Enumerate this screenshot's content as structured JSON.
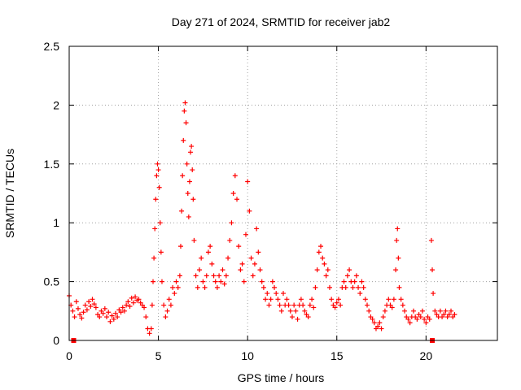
{
  "chart_data": {
    "type": "scatter",
    "title": "Day 271 of 2024, SRMTID for receiver jab2",
    "xlabel": "GPS time / hours",
    "ylabel": "SRMTID / TECUs",
    "xlim": [
      0,
      24
    ],
    "ylim": [
      0,
      2.5
    ],
    "xticks": [
      0,
      5,
      10,
      15,
      20
    ],
    "yticks": [
      0,
      0.5,
      1,
      1.5,
      2,
      2.5
    ],
    "ytick_labels": [
      "0",
      "0.5",
      "1",
      "1.5",
      "2",
      "2.5"
    ],
    "grid": true,
    "series": [
      {
        "name": "SRMTID",
        "color": "#ff0000",
        "marker": "plus",
        "points": [
          [
            0.0,
            0.38
          ],
          [
            0.1,
            0.3
          ],
          [
            0.2,
            0.25
          ],
          [
            0.3,
            0.2
          ],
          [
            0.4,
            0.33
          ],
          [
            0.5,
            0.27
          ],
          [
            0.6,
            0.22
          ],
          [
            0.7,
            0.19
          ],
          [
            0.8,
            0.24
          ],
          [
            0.9,
            0.3
          ],
          [
            1.0,
            0.26
          ],
          [
            1.1,
            0.33
          ],
          [
            1.2,
            0.29
          ],
          [
            1.3,
            0.35
          ],
          [
            1.4,
            0.31
          ],
          [
            1.5,
            0.28
          ],
          [
            1.6,
            0.22
          ],
          [
            1.7,
            0.2
          ],
          [
            1.8,
            0.25
          ],
          [
            1.9,
            0.23
          ],
          [
            2.0,
            0.27
          ],
          [
            2.1,
            0.2
          ],
          [
            2.2,
            0.24
          ],
          [
            2.3,
            0.16
          ],
          [
            2.4,
            0.21
          ],
          [
            2.5,
            0.18
          ],
          [
            2.6,
            0.23
          ],
          [
            2.7,
            0.2
          ],
          [
            2.8,
            0.26
          ],
          [
            2.9,
            0.24
          ],
          [
            3.0,
            0.28
          ],
          [
            3.1,
            0.25
          ],
          [
            3.2,
            0.3
          ],
          [
            3.3,
            0.33
          ],
          [
            3.4,
            0.29
          ],
          [
            3.5,
            0.36
          ],
          [
            3.6,
            0.32
          ],
          [
            3.7,
            0.37
          ],
          [
            3.8,
            0.34
          ],
          [
            3.9,
            0.35
          ],
          [
            4.0,
            0.32
          ],
          [
            4.1,
            0.3
          ],
          [
            4.2,
            0.28
          ],
          [
            4.3,
            0.2
          ],
          [
            4.4,
            0.1
          ],
          [
            4.5,
            0.06
          ],
          [
            4.6,
            0.1
          ],
          [
            4.65,
            0.3
          ],
          [
            4.7,
            0.5
          ],
          [
            4.75,
            0.7
          ],
          [
            4.8,
            0.95
          ],
          [
            4.85,
            1.2
          ],
          [
            4.9,
            1.4
          ],
          [
            4.95,
            1.5
          ],
          [
            5.0,
            1.45
          ],
          [
            5.05,
            1.3
          ],
          [
            5.1,
            1.0
          ],
          [
            5.15,
            0.75
          ],
          [
            5.2,
            0.5
          ],
          [
            5.3,
            0.3
          ],
          [
            5.4,
            0.2
          ],
          [
            5.5,
            0.25
          ],
          [
            5.6,
            0.35
          ],
          [
            5.7,
            0.3
          ],
          [
            5.8,
            0.45
          ],
          [
            5.9,
            0.4
          ],
          [
            6.0,
            0.5
          ],
          [
            6.1,
            0.45
          ],
          [
            6.2,
            0.55
          ],
          [
            6.25,
            0.8
          ],
          [
            6.3,
            1.1
          ],
          [
            6.35,
            1.4
          ],
          [
            6.4,
            1.7
          ],
          [
            6.45,
            1.95
          ],
          [
            6.5,
            2.02
          ],
          [
            6.55,
            1.85
          ],
          [
            6.6,
            1.5
          ],
          [
            6.65,
            1.25
          ],
          [
            6.7,
            1.05
          ],
          [
            6.75,
            1.35
          ],
          [
            6.8,
            1.6
          ],
          [
            6.85,
            1.65
          ],
          [
            6.9,
            1.45
          ],
          [
            6.95,
            1.2
          ],
          [
            7.0,
            0.85
          ],
          [
            7.1,
            0.55
          ],
          [
            7.2,
            0.45
          ],
          [
            7.3,
            0.6
          ],
          [
            7.4,
            0.7
          ],
          [
            7.5,
            0.5
          ],
          [
            7.6,
            0.45
          ],
          [
            7.7,
            0.55
          ],
          [
            7.8,
            0.75
          ],
          [
            7.9,
            0.8
          ],
          [
            8.0,
            0.65
          ],
          [
            8.1,
            0.55
          ],
          [
            8.2,
            0.5
          ],
          [
            8.3,
            0.45
          ],
          [
            8.4,
            0.55
          ],
          [
            8.5,
            0.5
          ],
          [
            8.6,
            0.6
          ],
          [
            8.7,
            0.48
          ],
          [
            8.8,
            0.55
          ],
          [
            8.9,
            0.7
          ],
          [
            9.0,
            0.85
          ],
          [
            9.1,
            1.0
          ],
          [
            9.2,
            1.25
          ],
          [
            9.3,
            1.4
          ],
          [
            9.4,
            1.2
          ],
          [
            9.5,
            0.8
          ],
          [
            9.6,
            0.6
          ],
          [
            9.7,
            0.65
          ],
          [
            9.8,
            0.5
          ],
          [
            9.9,
            0.9
          ],
          [
            10.0,
            1.35
          ],
          [
            10.1,
            1.1
          ],
          [
            10.2,
            0.7
          ],
          [
            10.3,
            0.55
          ],
          [
            10.4,
            0.65
          ],
          [
            10.5,
            0.95
          ],
          [
            10.6,
            0.75
          ],
          [
            10.7,
            0.6
          ],
          [
            10.8,
            0.5
          ],
          [
            10.9,
            0.45
          ],
          [
            11.0,
            0.35
          ],
          [
            11.1,
            0.4
          ],
          [
            11.2,
            0.3
          ],
          [
            11.3,
            0.35
          ],
          [
            11.4,
            0.5
          ],
          [
            11.5,
            0.45
          ],
          [
            11.6,
            0.4
          ],
          [
            11.7,
            0.35
          ],
          [
            11.8,
            0.3
          ],
          [
            11.9,
            0.25
          ],
          [
            12.0,
            0.4
          ],
          [
            12.1,
            0.3
          ],
          [
            12.2,
            0.35
          ],
          [
            12.3,
            0.3
          ],
          [
            12.4,
            0.25
          ],
          [
            12.5,
            0.2
          ],
          [
            12.6,
            0.3
          ],
          [
            12.7,
            0.25
          ],
          [
            12.8,
            0.18
          ],
          [
            12.9,
            0.3
          ],
          [
            13.0,
            0.35
          ],
          [
            13.1,
            0.3
          ],
          [
            13.2,
            0.25
          ],
          [
            13.3,
            0.22
          ],
          [
            13.4,
            0.2
          ],
          [
            13.5,
            0.3
          ],
          [
            13.6,
            0.35
          ],
          [
            13.7,
            0.28
          ],
          [
            13.8,
            0.45
          ],
          [
            13.9,
            0.6
          ],
          [
            14.0,
            0.75
          ],
          [
            14.1,
            0.8
          ],
          [
            14.2,
            0.7
          ],
          [
            14.3,
            0.65
          ],
          [
            14.4,
            0.55
          ],
          [
            14.5,
            0.6
          ],
          [
            14.6,
            0.45
          ],
          [
            14.7,
            0.35
          ],
          [
            14.8,
            0.3
          ],
          [
            14.9,
            0.28
          ],
          [
            15.0,
            0.32
          ],
          [
            15.1,
            0.35
          ],
          [
            15.2,
            0.3
          ],
          [
            15.3,
            0.45
          ],
          [
            15.4,
            0.5
          ],
          [
            15.5,
            0.45
          ],
          [
            15.6,
            0.55
          ],
          [
            15.7,
            0.6
          ],
          [
            15.8,
            0.5
          ],
          [
            15.9,
            0.45
          ],
          [
            16.0,
            0.5
          ],
          [
            16.1,
            0.55
          ],
          [
            16.2,
            0.45
          ],
          [
            16.3,
            0.4
          ],
          [
            16.4,
            0.5
          ],
          [
            16.5,
            0.45
          ],
          [
            16.6,
            0.35
          ],
          [
            16.7,
            0.3
          ],
          [
            16.8,
            0.25
          ],
          [
            16.9,
            0.2
          ],
          [
            17.0,
            0.18
          ],
          [
            17.1,
            0.15
          ],
          [
            17.2,
            0.1
          ],
          [
            17.3,
            0.12
          ],
          [
            17.4,
            0.15
          ],
          [
            17.5,
            0.1
          ],
          [
            17.6,
            0.2
          ],
          [
            17.7,
            0.25
          ],
          [
            17.8,
            0.3
          ],
          [
            17.9,
            0.35
          ],
          [
            18.0,
            0.3
          ],
          [
            18.1,
            0.28
          ],
          [
            18.2,
            0.35
          ],
          [
            18.3,
            0.6
          ],
          [
            18.35,
            0.85
          ],
          [
            18.4,
            0.95
          ],
          [
            18.45,
            0.7
          ],
          [
            18.5,
            0.45
          ],
          [
            18.6,
            0.35
          ],
          [
            18.7,
            0.3
          ],
          [
            18.8,
            0.25
          ],
          [
            18.9,
            0.2
          ],
          [
            19.0,
            0.18
          ],
          [
            19.1,
            0.15
          ],
          [
            19.2,
            0.2
          ],
          [
            19.3,
            0.25
          ],
          [
            19.4,
            0.2
          ],
          [
            19.5,
            0.18
          ],
          [
            19.6,
            0.22
          ],
          [
            19.7,
            0.2
          ],
          [
            19.8,
            0.25
          ],
          [
            19.9,
            0.18
          ],
          [
            20.0,
            0.15
          ],
          [
            20.1,
            0.2
          ],
          [
            20.2,
            0.18
          ],
          [
            20.3,
            0.85
          ],
          [
            20.35,
            0.6
          ],
          [
            20.4,
            0.4
          ],
          [
            20.5,
            0.25
          ],
          [
            20.6,
            0.22
          ],
          [
            20.7,
            0.2
          ],
          [
            20.8,
            0.25
          ],
          [
            20.9,
            0.2
          ],
          [
            21.0,
            0.22
          ],
          [
            21.1,
            0.25
          ],
          [
            21.2,
            0.2
          ],
          [
            21.3,
            0.22
          ],
          [
            21.4,
            0.25
          ],
          [
            21.5,
            0.2
          ],
          [
            21.6,
            0.22
          ]
        ]
      }
    ],
    "axis_markers": [
      {
        "x": 0.25,
        "y": 0
      },
      {
        "x": 20.35,
        "y": 0
      }
    ]
  }
}
